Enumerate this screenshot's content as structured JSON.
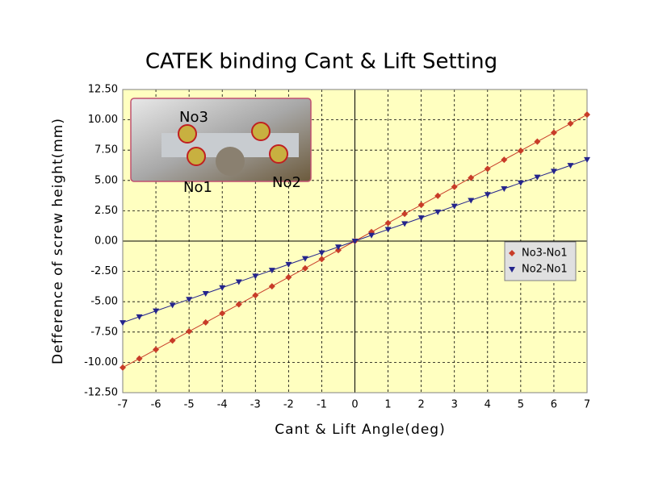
{
  "chart_data": {
    "type": "line",
    "title": "CATEK binding Cant & Lift Setting",
    "x_label": "Cant & Lift Angle(deg)",
    "y_label": "Defference of screw height(mm)",
    "x": [
      -7,
      -6.5,
      -6,
      -5.5,
      -5,
      -4.5,
      -4,
      -3.5,
      -3,
      -2.5,
      -2,
      -1.5,
      -1,
      -0.5,
      0,
      0.5,
      1,
      1.5,
      2,
      2.5,
      3,
      3.5,
      4,
      4.5,
      5,
      5.5,
      6,
      6.5,
      7
    ],
    "series": [
      {
        "name": "No3-No1",
        "color": "#c83c28",
        "marker": "diamond",
        "values": [
          -10.43,
          -9.69,
          -8.94,
          -8.2,
          -7.45,
          -6.71,
          -5.96,
          -5.22,
          -4.47,
          -3.73,
          -2.98,
          -2.24,
          -1.49,
          -0.75,
          0,
          0.75,
          1.49,
          2.24,
          2.98,
          3.73,
          4.47,
          5.22,
          5.96,
          6.71,
          7.45,
          8.2,
          8.94,
          9.69,
          10.43
        ]
      },
      {
        "name": "No2-No1",
        "color": "#24248c",
        "marker": "triangle-down",
        "values": [
          -6.72,
          -6.24,
          -5.76,
          -5.28,
          -4.8,
          -4.32,
          -3.84,
          -3.36,
          -2.88,
          -2.4,
          -1.92,
          -1.44,
          -0.96,
          -0.48,
          0,
          0.48,
          0.96,
          1.44,
          1.92,
          2.4,
          2.88,
          3.36,
          3.84,
          4.32,
          4.8,
          5.28,
          5.76,
          6.24,
          6.72
        ]
      }
    ],
    "xlim": [
      -7,
      7
    ],
    "xticks": [
      -7,
      -6,
      -5,
      -4,
      -3,
      -2,
      -1,
      0,
      1,
      2,
      3,
      4,
      5,
      6,
      7
    ],
    "ylim": [
      -12.5,
      12.5
    ],
    "yticks": [
      {
        "value": 12.5,
        "label": "12.50"
      },
      {
        "value": 10,
        "label": "10.00"
      },
      {
        "value": 7.5,
        "label": "7.50"
      },
      {
        "value": 5,
        "label": "5.00"
      },
      {
        "value": 2.5,
        "label": "2.50"
      },
      {
        "value": 0,
        "label": "0.00"
      },
      {
        "value": -2.5,
        "label": "-2.50"
      },
      {
        "value": -5,
        "label": "-5.00"
      },
      {
        "value": -7.5,
        "label": "-7.50"
      },
      {
        "value": -10,
        "label": "-10.00"
      },
      {
        "value": -12.5,
        "label": "-12.50"
      }
    ],
    "grid": true,
    "legend": "right",
    "inset_labels": [
      "No3",
      "No1",
      "No2"
    ]
  }
}
